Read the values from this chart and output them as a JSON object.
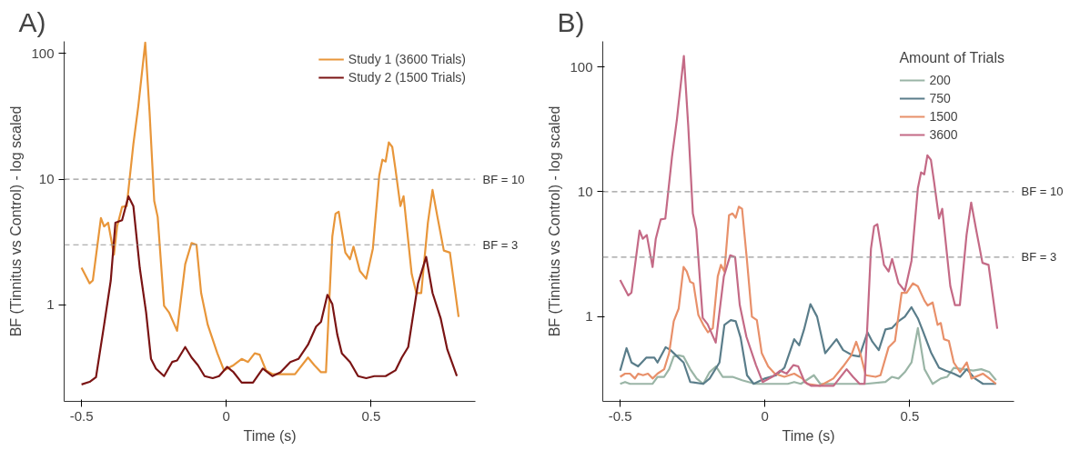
{
  "chart_data": [
    {
      "type": "line",
      "title": "A)",
      "xlabel": "Time (s)",
      "ylabel": "BF (Tinnitus vs Control) - log scaled",
      "log": "y",
      "grid": false,
      "legend": "top right",
      "xlim": [
        -0.56,
        0.86
      ],
      "ylim": [
        0.17,
        125
      ],
      "xticks": [
        -0.5,
        0,
        0.5
      ],
      "yticks": [
        1,
        10,
        100
      ],
      "ref_lines": [
        {
          "axis": "y",
          "value": 10,
          "label": "BF = 10",
          "color": "#999999",
          "line_style": "dashed"
        },
        {
          "axis": "y",
          "value": 3,
          "label": "BF = 3",
          "color": "#999999",
          "line_style": "dashed"
        }
      ],
      "series": [
        {
          "name": "Study 1 (3600 Trials)",
          "color": "#e8963a",
          "x": [
            -0.5,
            -0.472,
            -0.461,
            -0.433,
            -0.422,
            -0.408,
            -0.388,
            -0.377,
            -0.36,
            -0.344,
            -0.321,
            -0.304,
            -0.28,
            -0.265,
            -0.249,
            -0.237,
            -0.215,
            -0.198,
            -0.17,
            -0.142,
            -0.12,
            -0.103,
            -0.087,
            -0.064,
            -0.031,
            -0.008,
            0.025,
            0.053,
            0.075,
            0.098,
            0.115,
            0.137,
            0.159,
            0.237,
            0.282,
            0.304,
            0.327,
            0.344,
            0.366,
            0.377,
            0.388,
            0.411,
            0.427,
            0.439,
            0.461,
            0.483,
            0.506,
            0.528,
            0.539,
            0.55,
            0.561,
            0.573,
            0.584,
            0.601,
            0.612,
            0.64,
            0.656,
            0.673,
            0.696,
            0.712,
            0.729,
            0.751,
            0.772,
            0.802
          ],
          "values": [
            1.97,
            1.48,
            1.56,
            4.9,
            4.2,
            4.5,
            2.5,
            4.2,
            6.0,
            6.1,
            19,
            38,
            122,
            34,
            6.7,
            5.0,
            0.98,
            0.87,
            0.62,
            2.1,
            3.1,
            3.0,
            1.24,
            0.69,
            0.41,
            0.3,
            0.33,
            0.37,
            0.35,
            0.41,
            0.4,
            0.3,
            0.28,
            0.28,
            0.38,
            0.33,
            0.29,
            0.29,
            3.5,
            5.3,
            5.5,
            2.6,
            2.3,
            2.9,
            1.86,
            1.61,
            2.8,
            10.7,
            14.3,
            13.8,
            19.6,
            18,
            12,
            6.1,
            7.3,
            1.76,
            1.24,
            1.24,
            4.5,
            8.2,
            5.0,
            2.7,
            2.6,
            0.8
          ]
        },
        {
          "name": "Study 2 (1500 Trials)",
          "color": "#7a1414",
          "x": [
            -0.5,
            -0.472,
            -0.45,
            -0.422,
            -0.399,
            -0.383,
            -0.36,
            -0.338,
            -0.321,
            -0.299,
            -0.277,
            -0.26,
            -0.243,
            -0.215,
            -0.187,
            -0.17,
            -0.142,
            -0.12,
            -0.098,
            -0.075,
            -0.047,
            -0.025,
            0.003,
            0.025,
            0.053,
            0.092,
            0.126,
            0.159,
            0.187,
            0.221,
            0.249,
            0.282,
            0.31,
            0.327,
            0.349,
            0.366,
            0.383,
            0.399,
            0.427,
            0.455,
            0.483,
            0.511,
            0.55,
            0.584,
            0.606,
            0.628,
            0.662,
            0.69,
            0.712,
            0.74,
            0.763,
            0.796
          ],
          "values": [
            0.232,
            0.243,
            0.265,
            0.69,
            1.56,
            4.5,
            4.7,
            7.3,
            6.1,
            1.97,
            0.87,
            0.37,
            0.31,
            0.27,
            0.35,
            0.36,
            0.46,
            0.38,
            0.33,
            0.27,
            0.26,
            0.27,
            0.32,
            0.29,
            0.24,
            0.24,
            0.31,
            0.27,
            0.29,
            0.35,
            0.37,
            0.48,
            0.67,
            0.73,
            1.2,
            1.01,
            0.58,
            0.41,
            0.35,
            0.27,
            0.26,
            0.27,
            0.27,
            0.3,
            0.38,
            0.46,
            1.48,
            2.4,
            1.24,
            0.78,
            0.44,
            0.27
          ]
        }
      ]
    },
    {
      "type": "line",
      "title": "B)",
      "xlabel": "Time (s)",
      "ylabel": "BF (Tinnitus vs Control) - log scaled",
      "log": "y",
      "grid": false,
      "legend": "top right",
      "legend_title": "Amount of Trials",
      "xlim": [
        -0.56,
        0.86
      ],
      "ylim": [
        0.21,
        160
      ],
      "xticks": [
        -0.5,
        0,
        0.5
      ],
      "yticks": [
        1,
        10,
        100
      ],
      "ref_lines": [
        {
          "axis": "y",
          "value": 10,
          "label": "BF = 10",
          "color": "#999999",
          "line_style": "dashed"
        },
        {
          "axis": "y",
          "value": 3,
          "label": "BF = 3",
          "color": "#999999",
          "line_style": "dashed"
        }
      ],
      "series": [
        {
          "name": "200",
          "color": "#9ab5a6",
          "x": [
            -0.5,
            -0.483,
            -0.466,
            -0.388,
            -0.371,
            -0.348,
            -0.331,
            -0.315,
            -0.298,
            -0.281,
            -0.258,
            -0.236,
            -0.213,
            -0.191,
            -0.169,
            -0.146,
            -0.112,
            -0.079,
            -0.034,
            0.079,
            0.101,
            0.124,
            0.169,
            0.191,
            0.281,
            0.348,
            0.416,
            0.438,
            0.461,
            0.483,
            0.506,
            0.528,
            0.551,
            0.579,
            0.607,
            0.629,
            0.652,
            0.685,
            0.719,
            0.747,
            0.775,
            0.798
          ],
          "values": [
            0.29,
            0.3,
            0.29,
            0.29,
            0.33,
            0.33,
            0.38,
            0.48,
            0.49,
            0.48,
            0.38,
            0.32,
            0.29,
            0.36,
            0.4,
            0.33,
            0.33,
            0.31,
            0.29,
            0.29,
            0.3,
            0.29,
            0.34,
            0.29,
            0.29,
            0.29,
            0.3,
            0.33,
            0.32,
            0.36,
            0.43,
            0.81,
            0.38,
            0.29,
            0.32,
            0.33,
            0.39,
            0.38,
            0.37,
            0.38,
            0.36,
            0.31
          ]
        },
        {
          "name": "750",
          "color": "#5a7d8a",
          "x": [
            -0.5,
            -0.478,
            -0.461,
            -0.438,
            -0.41,
            -0.382,
            -0.371,
            -0.343,
            -0.326,
            -0.303,
            -0.281,
            -0.258,
            -0.213,
            -0.191,
            -0.157,
            -0.14,
            -0.118,
            -0.101,
            -0.084,
            -0.062,
            -0.039,
            0.0,
            0.039,
            0.067,
            0.101,
            0.118,
            0.135,
            0.157,
            0.18,
            0.208,
            0.225,
            0.247,
            0.27,
            0.303,
            0.326,
            0.354,
            0.371,
            0.393,
            0.416,
            0.438,
            0.461,
            0.483,
            0.506,
            0.528,
            0.545,
            0.573,
            0.601,
            0.624,
            0.652,
            0.674,
            0.697,
            0.725,
            0.753,
            0.798
          ],
          "values": [
            0.37,
            0.56,
            0.43,
            0.4,
            0.47,
            0.47,
            0.43,
            0.57,
            0.54,
            0.48,
            0.43,
            0.3,
            0.29,
            0.32,
            0.43,
            0.86,
            0.94,
            0.92,
            0.68,
            0.34,
            0.29,
            0.32,
            0.34,
            0.39,
            0.66,
            0.59,
            0.79,
            1.26,
            1.0,
            0.51,
            0.57,
            0.66,
            0.54,
            0.49,
            0.48,
            0.75,
            0.63,
            0.54,
            0.79,
            0.81,
            0.92,
            1.0,
            1.19,
            0.97,
            0.77,
            0.52,
            0.39,
            0.37,
            0.35,
            0.33,
            0.38,
            0.32,
            0.29,
            0.29
          ]
        },
        {
          "name": "1500",
          "color": "#e8906a",
          "x": [
            -0.5,
            -0.483,
            -0.466,
            -0.449,
            -0.438,
            -0.421,
            -0.404,
            -0.388,
            -0.371,
            -0.348,
            -0.331,
            -0.315,
            -0.298,
            -0.281,
            -0.27,
            -0.258,
            -0.247,
            -0.23,
            -0.213,
            -0.197,
            -0.18,
            -0.163,
            -0.152,
            -0.14,
            -0.124,
            -0.112,
            -0.101,
            -0.09,
            -0.079,
            -0.062,
            -0.045,
            -0.028,
            -0.011,
            0.011,
            0.034,
            0.067,
            0.101,
            0.129,
            0.146,
            0.191,
            0.236,
            0.27,
            0.298,
            0.315,
            0.331,
            0.348,
            0.382,
            0.399,
            0.427,
            0.449,
            0.472,
            0.489,
            0.511,
            0.528,
            0.551,
            0.562,
            0.579,
            0.596,
            0.607,
            0.618,
            0.635,
            0.652,
            0.674,
            0.697,
            0.713,
            0.753,
            0.775,
            0.798
          ],
          "values": [
            0.33,
            0.35,
            0.35,
            0.32,
            0.35,
            0.34,
            0.35,
            0.32,
            0.35,
            0.38,
            0.51,
            0.92,
            1.16,
            2.5,
            2.3,
            1.9,
            1.85,
            1.03,
            0.86,
            0.75,
            0.81,
            2.1,
            2.6,
            2.3,
            6.5,
            6.7,
            6.2,
            7.6,
            7.3,
            2.8,
            1.0,
            0.94,
            0.51,
            0.4,
            0.35,
            0.33,
            0.35,
            0.32,
            0.29,
            0.28,
            0.32,
            0.4,
            0.49,
            0.63,
            0.49,
            0.34,
            0.33,
            0.34,
            0.57,
            0.64,
            1.55,
            1.55,
            1.85,
            1.75,
            1.34,
            1.23,
            1.3,
            0.86,
            0.89,
            0.66,
            0.64,
            0.43,
            0.36,
            0.43,
            0.32,
            0.35,
            0.32,
            0.29
          ]
        },
        {
          "name": "3600",
          "color": "#c46a86",
          "x": [
            -0.5,
            -0.472,
            -0.461,
            -0.433,
            -0.422,
            -0.408,
            -0.388,
            -0.377,
            -0.36,
            -0.344,
            -0.321,
            -0.304,
            -0.28,
            -0.265,
            -0.249,
            -0.237,
            -0.215,
            -0.198,
            -0.17,
            -0.142,
            -0.12,
            -0.103,
            -0.087,
            -0.064,
            -0.031,
            -0.008,
            0.025,
            0.053,
            0.075,
            0.098,
            0.115,
            0.137,
            0.159,
            0.237,
            0.282,
            0.304,
            0.327,
            0.344,
            0.366,
            0.377,
            0.388,
            0.411,
            0.427,
            0.439,
            0.461,
            0.483,
            0.506,
            0.528,
            0.539,
            0.55,
            0.561,
            0.573,
            0.584,
            0.601,
            0.612,
            0.64,
            0.656,
            0.673,
            0.696,
            0.712,
            0.729,
            0.751,
            0.772,
            0.802
          ],
          "values": [
            1.97,
            1.48,
            1.56,
            4.9,
            4.2,
            4.5,
            2.5,
            4.2,
            6.0,
            6.1,
            19,
            38,
            122,
            34,
            6.7,
            5.0,
            0.98,
            0.87,
            0.62,
            2.1,
            3.1,
            3.0,
            1.24,
            0.69,
            0.41,
            0.3,
            0.33,
            0.37,
            0.35,
            0.41,
            0.4,
            0.3,
            0.28,
            0.28,
            0.38,
            0.33,
            0.29,
            0.29,
            3.5,
            5.3,
            5.5,
            2.6,
            2.3,
            2.9,
            1.86,
            1.61,
            2.8,
            10.7,
            14.3,
            13.8,
            19.6,
            18,
            12,
            6.1,
            7.3,
            1.76,
            1.24,
            1.24,
            4.5,
            8.2,
            5.0,
            2.7,
            2.6,
            0.8
          ]
        }
      ]
    }
  ]
}
